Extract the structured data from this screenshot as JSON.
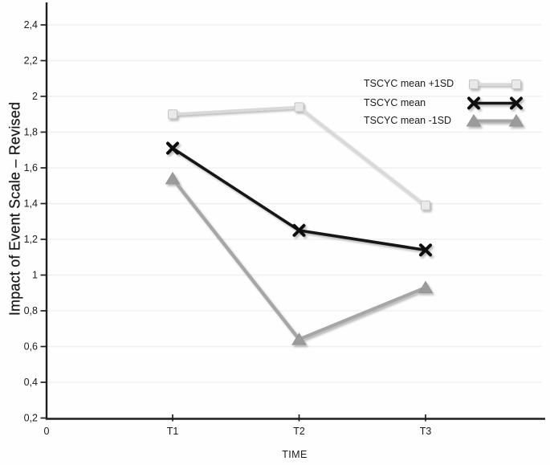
{
  "chart_data": {
    "type": "line",
    "title": "",
    "xlabel": "TIME",
    "ylabel": "Impact of Event Scale – Revised",
    "x_origin_label": "0",
    "x_categories": [
      "T1",
      "T2",
      "T3"
    ],
    "ylim": [
      0.2,
      2.4
    ],
    "y_ticks": [
      {
        "v": 0.2,
        "label": "0,2"
      },
      {
        "v": 0.4,
        "label": "0,4"
      },
      {
        "v": 0.6,
        "label": "0,6"
      },
      {
        "v": 0.8,
        "label": "0,8"
      },
      {
        "v": 1,
        "label": "1"
      },
      {
        "v": 1.2,
        "label": "1,2"
      },
      {
        "v": 1.4,
        "label": "1,4"
      },
      {
        "v": 1.6,
        "label": "1,6"
      },
      {
        "v": 1.8,
        "label": "1,8"
      },
      {
        "v": 2,
        "label": "2"
      },
      {
        "v": 2.2,
        "label": "2,2"
      },
      {
        "v": 2.4,
        "label": "2,4"
      }
    ],
    "grid": "horizontal",
    "legend_position": "top-right",
    "axis_color": "#1f1f1f",
    "gridline_color": "#f0f0f0",
    "text_color": "#1b1b1b",
    "series": [
      {
        "name": "TSCYC mean +1SD",
        "marker": "square",
        "line_color": "#d9d9d9",
        "marker_color": "#e9e9e9",
        "marker_edge": "#c4c4c4",
        "line_width": 3.4,
        "values": [
          1.9,
          1.94,
          1.39
        ]
      },
      {
        "name": "TSCYC mean",
        "marker": "x",
        "line_color": "#121212",
        "marker_color": "#0b0b0b",
        "marker_edge": "#0b0b0b",
        "line_width": 3.6,
        "values": [
          1.71,
          1.25,
          1.14
        ]
      },
      {
        "name": "TSCYC mean -1SD",
        "marker": "triangle",
        "line_color": "#a6a6a6",
        "marker_color": "#9b9b9b",
        "marker_edge": "#949494",
        "line_width": 4.2,
        "values": [
          1.54,
          0.64,
          0.93
        ]
      }
    ]
  }
}
